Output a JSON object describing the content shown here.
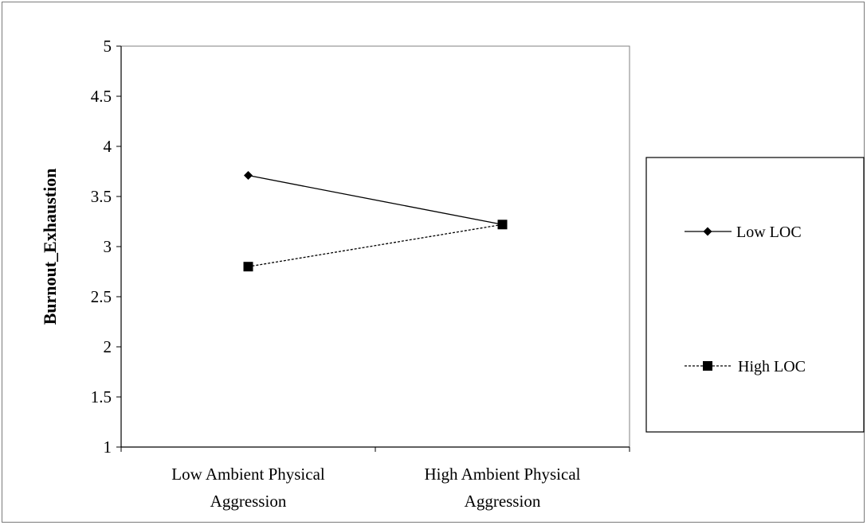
{
  "chart_data": {
    "type": "line",
    "title": "",
    "xlabel": "",
    "ylabel": "Burnout_Exhaustion",
    "ylim": [
      1,
      5
    ],
    "yticks": [
      "5",
      "4.5",
      "4",
      "3.5",
      "3",
      "2.5",
      "2",
      "1.5",
      "1"
    ],
    "ytick_values": [
      5,
      4.5,
      4,
      3.5,
      3,
      2.5,
      2,
      1.5,
      1
    ],
    "categories": [
      [
        "Low Ambient Physical",
        "Aggression"
      ],
      [
        "High Ambient Physical",
        "Aggression"
      ]
    ],
    "series": [
      {
        "name": "Low LOC",
        "values": [
          3.71,
          3.22
        ],
        "marker": "diamond",
        "dash": "solid",
        "color": "#000000"
      },
      {
        "name": "High LOC",
        "values": [
          2.8,
          3.22
        ],
        "marker": "square",
        "dash": "dotted",
        "color": "#000000"
      }
    ],
    "grid": false,
    "legend_position": "right"
  }
}
